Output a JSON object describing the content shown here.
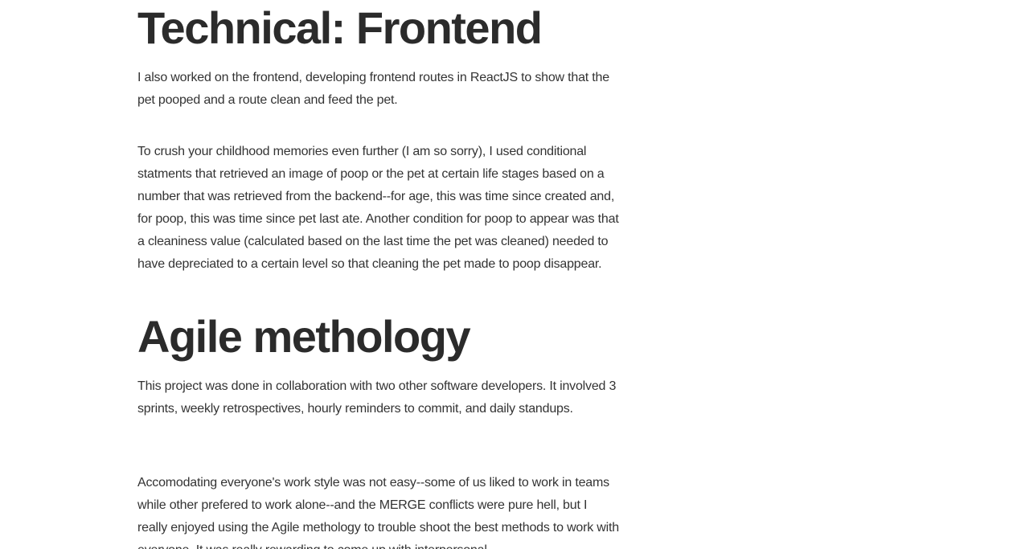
{
  "sections": [
    {
      "heading": "Technical: Frontend",
      "paragraphs": [
        "I also worked on the frontend, developing frontend routes in ReactJS to show that the pet pooped and a route clean and feed the pet.",
        "To crush your childhood memories even further (I am so sorry), I used conditional statments that retrieved an image of poop or the pet at certain life stages based on a number that was retrieved from the backend--for age, this was time since created and, for poop, this was time since pet last ate. Another condition for poop to appear was that a cleaniness value (calculated based on the last time the pet was cleaned) needed to have depreciated to a certain level so that cleaning the pet made to poop disappear."
      ]
    },
    {
      "heading": "Agile methology",
      "paragraphs": [
        "This project was done in collaboration with two other software developers. It involved 3 sprints, weekly retrospectives, hourly reminders to commit, and daily standups.",
        "Accomodating everyone's work style was not easy--some of us liked to work in teams while other prefered to work alone--and the MERGE conflicts were pure hell, but I really enjoyed using the Agile methology to trouble shoot the best methods to work with everyone. It was really rewarding to come up with interpersonal"
      ]
    }
  ]
}
